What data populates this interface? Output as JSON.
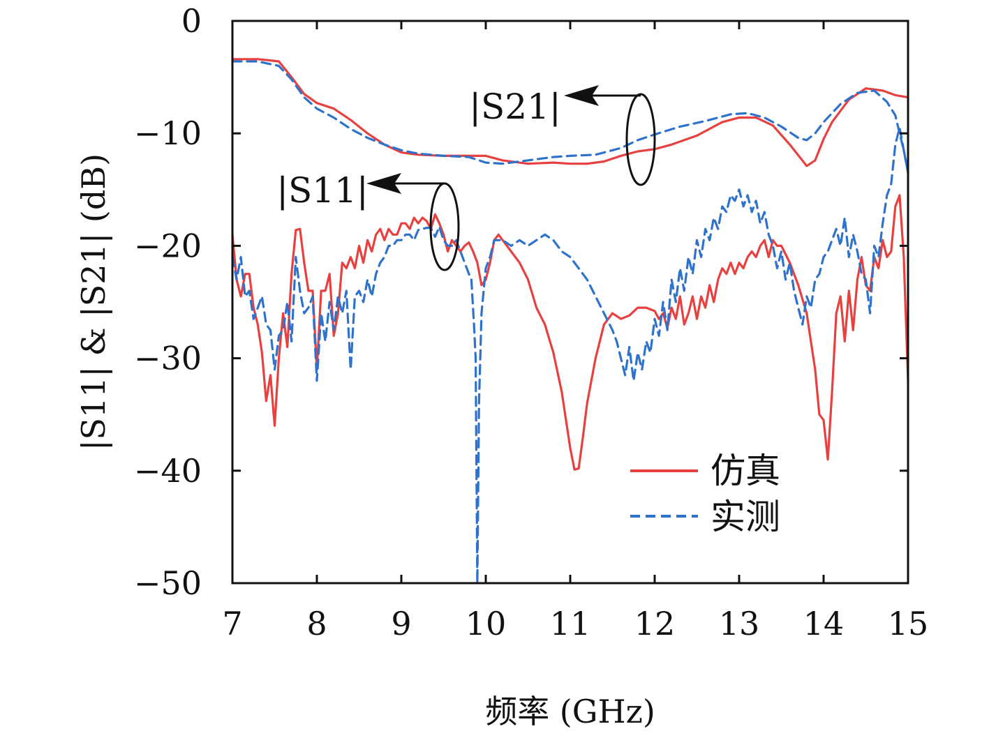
{
  "chart_data": {
    "type": "line",
    "xlabel": "频率 (GHz)",
    "ylabel": "|S11| & |S21| (dB)",
    "xlim": [
      7,
      15
    ],
    "ylim": [
      -50,
      0
    ],
    "xticks": [
      "7",
      "8",
      "9",
      "10",
      "11",
      "12",
      "13",
      "14",
      "15"
    ],
    "yticks": [
      "0",
      "−10",
      "−20",
      "−30",
      "−40",
      "−50"
    ],
    "grid": false,
    "legend_position": "bottom-right",
    "annotations": [
      "|S21|",
      "|S11|"
    ],
    "series": [
      {
        "name": "仿真",
        "quantity": "S21",
        "color": "#e8403f",
        "dash": "solid",
        "x": [
          7.0,
          7.3,
          7.55,
          7.7,
          7.85,
          8.0,
          8.2,
          8.4,
          8.6,
          8.8,
          9.0,
          9.2,
          9.5,
          9.8,
          10.0,
          10.2,
          10.5,
          10.8,
          11.0,
          11.2,
          11.4,
          11.6,
          11.8,
          12.0,
          12.2,
          12.5,
          12.8,
          13.0,
          13.2,
          13.4,
          13.6,
          13.8,
          13.9,
          14.0,
          14.1,
          14.3,
          14.5,
          14.7,
          14.85,
          15.0
        ],
        "y": [
          -3.4,
          -3.4,
          -3.6,
          -5.0,
          -6.5,
          -7.3,
          -7.8,
          -8.8,
          -10.0,
          -11.0,
          -11.7,
          -11.9,
          -12.0,
          -12.0,
          -12.0,
          -12.4,
          -12.7,
          -12.6,
          -12.7,
          -12.7,
          -12.5,
          -12.0,
          -11.6,
          -11.4,
          -11.0,
          -10.2,
          -9.0,
          -8.6,
          -8.6,
          -9.3,
          -11.0,
          -12.9,
          -12.4,
          -10.5,
          -9.0,
          -7.0,
          -6.0,
          -6.2,
          -6.6,
          -6.8
        ]
      },
      {
        "name": "实测",
        "quantity": "S21",
        "color": "#2f72cc",
        "dash": "dashed",
        "x": [
          7.0,
          7.3,
          7.55,
          7.7,
          7.85,
          8.0,
          8.2,
          8.4,
          8.6,
          8.8,
          9.0,
          9.2,
          9.5,
          9.8,
          10.0,
          10.2,
          10.5,
          10.8,
          11.0,
          11.3,
          11.6,
          11.8,
          12.0,
          12.3,
          12.6,
          12.9,
          13.1,
          13.3,
          13.5,
          13.7,
          13.8,
          13.9,
          14.0,
          14.2,
          14.4,
          14.6,
          14.75,
          14.85,
          14.9,
          14.95,
          15.0
        ],
        "y": [
          -3.6,
          -3.6,
          -4.0,
          -5.2,
          -6.8,
          -7.8,
          -8.6,
          -9.6,
          -10.4,
          -11.0,
          -11.5,
          -11.8,
          -12.0,
          -12.1,
          -12.6,
          -12.7,
          -12.4,
          -12.1,
          -12.0,
          -11.9,
          -11.3,
          -10.6,
          -10.1,
          -9.4,
          -8.9,
          -8.3,
          -8.2,
          -8.6,
          -9.4,
          -10.4,
          -10.6,
          -10.0,
          -9.0,
          -7.4,
          -6.4,
          -6.2,
          -7.2,
          -8.4,
          -10.0,
          -11.5,
          -13.5
        ]
      },
      {
        "name": "仿真",
        "quantity": "S11",
        "color": "#e8403f",
        "dash": "solid",
        "x": [
          7.0,
          7.05,
          7.1,
          7.15,
          7.2,
          7.25,
          7.3,
          7.35,
          7.4,
          7.45,
          7.5,
          7.55,
          7.6,
          7.65,
          7.7,
          7.75,
          7.8,
          7.85,
          7.9,
          7.95,
          8.0,
          8.05,
          8.1,
          8.15,
          8.2,
          8.25,
          8.3,
          8.35,
          8.4,
          8.45,
          8.5,
          8.55,
          8.6,
          8.65,
          8.7,
          8.75,
          8.8,
          8.85,
          8.9,
          8.95,
          9.0,
          9.05,
          9.1,
          9.15,
          9.2,
          9.25,
          9.3,
          9.35,
          9.4,
          9.45,
          9.5,
          9.55,
          9.6,
          9.65,
          9.7,
          9.75,
          9.8,
          9.85,
          9.9,
          9.95,
          10.0,
          10.05,
          10.1,
          10.15,
          10.2,
          10.3,
          10.4,
          10.5,
          10.6,
          10.7,
          10.8,
          10.9,
          11.0,
          11.05,
          11.1,
          11.15,
          11.2,
          11.3,
          11.4,
          11.5,
          11.6,
          11.7,
          11.8,
          11.9,
          12.0,
          12.05,
          12.1,
          12.15,
          12.2,
          12.25,
          12.3,
          12.35,
          12.4,
          12.45,
          12.5,
          12.55,
          12.6,
          12.65,
          12.7,
          12.75,
          12.8,
          12.85,
          12.9,
          12.95,
          13.0,
          13.05,
          13.1,
          13.15,
          13.2,
          13.25,
          13.3,
          13.35,
          13.4,
          13.45,
          13.5,
          13.6,
          13.7,
          13.8,
          13.85,
          13.9,
          13.95,
          14.0,
          14.05,
          14.1,
          14.15,
          14.2,
          14.25,
          14.3,
          14.35,
          14.4,
          14.45,
          14.5,
          14.55,
          14.6,
          14.65,
          14.7,
          14.75,
          14.8,
          14.85,
          14.9,
          14.95,
          15.0
        ],
        "y": [
          -19.0,
          -23.0,
          -24.5,
          -22.5,
          -22.5,
          -25.5,
          -27.0,
          -29.5,
          -33.8,
          -31.5,
          -36.0,
          -30.0,
          -26.0,
          -29.0,
          -22.5,
          -18.6,
          -18.5,
          -21.5,
          -24.0,
          -24.0,
          -31.0,
          -24.0,
          -24.0,
          -22.5,
          -28.0,
          -26.0,
          -21.5,
          -22.0,
          -21.0,
          -22.0,
          -20.0,
          -21.5,
          -19.5,
          -20.5,
          -19.0,
          -18.5,
          -19.5,
          -18.5,
          -19.0,
          -19.0,
          -18.0,
          -18.0,
          -18.5,
          -17.5,
          -18.0,
          -17.5,
          -17.8,
          -18.5,
          -17.2,
          -18.0,
          -19.0,
          -20.5,
          -19.5,
          -20.0,
          -20.5,
          -20.0,
          -19.7,
          -20.5,
          -21.5,
          -23.5,
          -23.0,
          -21.5,
          -19.5,
          -19.0,
          -19.5,
          -20.5,
          -21.5,
          -23.0,
          -25.5,
          -27.0,
          -29.5,
          -33.0,
          -38.0,
          -39.9,
          -39.8,
          -37.0,
          -34.0,
          -30.0,
          -27.0,
          -26.0,
          -26.5,
          -26.2,
          -25.5,
          -25.5,
          -25.8,
          -26.5,
          -26.0,
          -27.3,
          -25.5,
          -26.5,
          -24.5,
          -27.0,
          -26.0,
          -24.5,
          -26.5,
          -24.5,
          -25.5,
          -23.5,
          -25.0,
          -23.0,
          -22.0,
          -22.5,
          -21.5,
          -22.5,
          -21.5,
          -22.0,
          -21.0,
          -20.5,
          -21.0,
          -20.0,
          -19.5,
          -21.0,
          -19.5,
          -20.0,
          -20.0,
          -21.5,
          -23.5,
          -26.0,
          -28.5,
          -31.0,
          -35.0,
          -35.5,
          -39.0,
          -33.0,
          -26.0,
          -24.5,
          -28.5,
          -24.0,
          -27.5,
          -23.0,
          -21.0,
          -23.5,
          -24.0,
          -21.0,
          -22.0,
          -19.5,
          -21.0,
          -20.5,
          -16.5,
          -15.5,
          -21.0,
          -32.0
        ]
      },
      {
        "name": "实测",
        "quantity": "S11",
        "color": "#2f72cc",
        "dash": "dashed",
        "x": [
          7.0,
          7.05,
          7.1,
          7.15,
          7.2,
          7.25,
          7.3,
          7.35,
          7.4,
          7.45,
          7.5,
          7.55,
          7.6,
          7.65,
          7.7,
          7.75,
          7.8,
          7.85,
          7.9,
          7.95,
          8.0,
          8.05,
          8.1,
          8.15,
          8.2,
          8.25,
          8.3,
          8.35,
          8.4,
          8.45,
          8.5,
          8.55,
          8.6,
          8.65,
          8.7,
          8.75,
          8.8,
          8.85,
          8.9,
          8.95,
          9.0,
          9.05,
          9.1,
          9.15,
          9.2,
          9.25,
          9.3,
          9.35,
          9.4,
          9.45,
          9.5,
          9.55,
          9.6,
          9.65,
          9.7,
          9.75,
          9.8,
          9.83,
          9.86,
          9.88,
          9.9,
          9.92,
          9.95,
          10.0,
          10.05,
          10.1,
          10.15,
          10.2,
          10.3,
          10.4,
          10.5,
          10.6,
          10.7,
          10.8,
          10.9,
          11.0,
          11.1,
          11.2,
          11.3,
          11.4,
          11.5,
          11.55,
          11.6,
          11.65,
          11.7,
          11.75,
          11.8,
          11.85,
          11.9,
          11.95,
          12.0,
          12.05,
          12.1,
          12.15,
          12.2,
          12.25,
          12.3,
          12.35,
          12.4,
          12.45,
          12.5,
          12.55,
          12.6,
          12.65,
          12.7,
          12.75,
          12.8,
          12.85,
          12.9,
          12.95,
          13.0,
          13.05,
          13.1,
          13.15,
          13.2,
          13.25,
          13.3,
          13.35,
          13.4,
          13.45,
          13.5,
          13.55,
          13.6,
          13.65,
          13.7,
          13.75,
          13.8,
          13.85,
          13.9,
          13.95,
          14.0,
          14.05,
          14.1,
          14.15,
          14.2,
          14.25,
          14.3,
          14.35,
          14.4,
          14.45,
          14.5,
          14.55,
          14.6,
          14.65,
          14.7,
          14.75,
          14.8,
          14.85,
          14.9,
          14.95,
          15.0
        ],
        "y": [
          -21.0,
          -23.0,
          -21.0,
          -24.5,
          -24.0,
          -26.5,
          -25.5,
          -24.5,
          -27.0,
          -27.5,
          -31.0,
          -28.0,
          -27.5,
          -25.0,
          -28.5,
          -21.0,
          -24.0,
          -26.0,
          -25.5,
          -24.5,
          -32.0,
          -26.0,
          -28.5,
          -25.0,
          -27.5,
          -24.5,
          -26.0,
          -24.0,
          -31.0,
          -24.5,
          -24.0,
          -25.0,
          -23.0,
          -24.5,
          -22.5,
          -21.5,
          -21.0,
          -20.0,
          -20.0,
          -19.5,
          -19.5,
          -19.0,
          -19.0,
          -19.5,
          -18.6,
          -18.5,
          -18.4,
          -18.4,
          -19.2,
          -18.3,
          -19.5,
          -20.0,
          -20.0,
          -19.5,
          -20.5,
          -21.5,
          -22.5,
          -23.0,
          -27.0,
          -30.0,
          -50.0,
          -34.0,
          -26.0,
          -22.0,
          -21.0,
          -19.5,
          -19.5,
          -19.5,
          -20.0,
          -19.5,
          -20.0,
          -19.5,
          -19.0,
          -19.5,
          -20.5,
          -21.0,
          -22.0,
          -23.0,
          -24.5,
          -26.0,
          -27.5,
          -28.5,
          -30.0,
          -31.5,
          -29.0,
          -32.0,
          -29.5,
          -31.0,
          -28.5,
          -29.5,
          -26.5,
          -28.0,
          -25.0,
          -27.5,
          -23.0,
          -25.0,
          -22.0,
          -24.0,
          -21.0,
          -22.5,
          -19.5,
          -21.0,
          -18.5,
          -19.5,
          -17.5,
          -18.5,
          -16.5,
          -17.0,
          -15.5,
          -16.0,
          -15.0,
          -16.5,
          -15.5,
          -17.0,
          -16.0,
          -18.0,
          -17.0,
          -19.0,
          -20.0,
          -22.0,
          -20.5,
          -23.0,
          -21.5,
          -24.0,
          -25.5,
          -27.0,
          -24.5,
          -25.5,
          -23.0,
          -22.5,
          -21.0,
          -20.5,
          -19.5,
          -18.5,
          -20.0,
          -17.5,
          -21.0,
          -19.0,
          -20.5,
          -22.5,
          -23.0,
          -26.0,
          -20.0,
          -21.0,
          -18.0,
          -15.5,
          -14.5,
          -11.0,
          -9.5,
          -11.5,
          -13.5
        ]
      }
    ]
  }
}
